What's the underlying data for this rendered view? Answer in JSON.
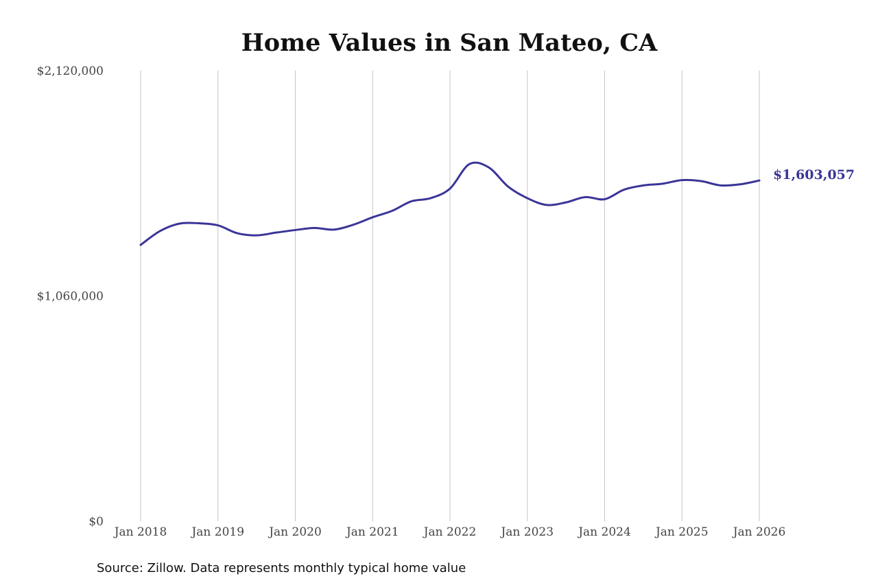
{
  "chart_data": {
    "type": "line",
    "title": "Home Values in San Mateo, CA",
    "xlabel": "",
    "ylabel": "",
    "ylim": [
      0,
      2120000
    ],
    "y_ticks": [
      {
        "value": 0,
        "label": "$0"
      },
      {
        "value": 1060000,
        "label": "$1,060,000"
      },
      {
        "value": 2120000,
        "label": "$2,120,000"
      }
    ],
    "x_range": [
      "2018-01",
      "2026-01"
    ],
    "x_ticks": [
      {
        "date": "2018-01",
        "label": "Jan 2018"
      },
      {
        "date": "2019-01",
        "label": "Jan 2019"
      },
      {
        "date": "2020-01",
        "label": "Jan 2020"
      },
      {
        "date": "2021-01",
        "label": "Jan 2021"
      },
      {
        "date": "2022-01",
        "label": "Jan 2022"
      },
      {
        "date": "2023-01",
        "label": "Jan 2023"
      },
      {
        "date": "2024-01",
        "label": "Jan 2024"
      },
      {
        "date": "2025-01",
        "label": "Jan 2025"
      },
      {
        "date": "2026-01",
        "label": "Jan 2026"
      }
    ],
    "grid": "vertical",
    "series": [
      {
        "color": "#3a3598",
        "points": [
          {
            "x": "2018-01",
            "y": 1300000
          },
          {
            "x": "2018-04",
            "y": 1365000
          },
          {
            "x": "2018-07",
            "y": 1400000
          },
          {
            "x": "2018-10",
            "y": 1402000
          },
          {
            "x": "2019-01",
            "y": 1392000
          },
          {
            "x": "2019-04",
            "y": 1355000
          },
          {
            "x": "2019-07",
            "y": 1345000
          },
          {
            "x": "2019-10",
            "y": 1358000
          },
          {
            "x": "2020-01",
            "y": 1370000
          },
          {
            "x": "2020-04",
            "y": 1380000
          },
          {
            "x": "2020-07",
            "y": 1372000
          },
          {
            "x": "2020-10",
            "y": 1395000
          },
          {
            "x": "2021-01",
            "y": 1430000
          },
          {
            "x": "2021-04",
            "y": 1460000
          },
          {
            "x": "2021-07",
            "y": 1505000
          },
          {
            "x": "2021-10",
            "y": 1520000
          },
          {
            "x": "2022-01",
            "y": 1565000
          },
          {
            "x": "2022-04",
            "y": 1680000
          },
          {
            "x": "2022-07",
            "y": 1665000
          },
          {
            "x": "2022-10",
            "y": 1575000
          },
          {
            "x": "2023-01",
            "y": 1520000
          },
          {
            "x": "2023-04",
            "y": 1488000
          },
          {
            "x": "2023-07",
            "y": 1500000
          },
          {
            "x": "2023-10",
            "y": 1525000
          },
          {
            "x": "2024-01",
            "y": 1515000
          },
          {
            "x": "2024-04",
            "y": 1560000
          },
          {
            "x": "2024-07",
            "y": 1580000
          },
          {
            "x": "2024-10",
            "y": 1588000
          },
          {
            "x": "2025-01",
            "y": 1605000
          },
          {
            "x": "2025-04",
            "y": 1600000
          },
          {
            "x": "2025-07",
            "y": 1580000
          },
          {
            "x": "2025-10",
            "y": 1585000
          },
          {
            "x": "2026-01",
            "y": 1603057
          }
        ]
      }
    ],
    "end_label": "$1,603,057",
    "source": "Source: Zillow. Data represents monthly typical home value"
  }
}
